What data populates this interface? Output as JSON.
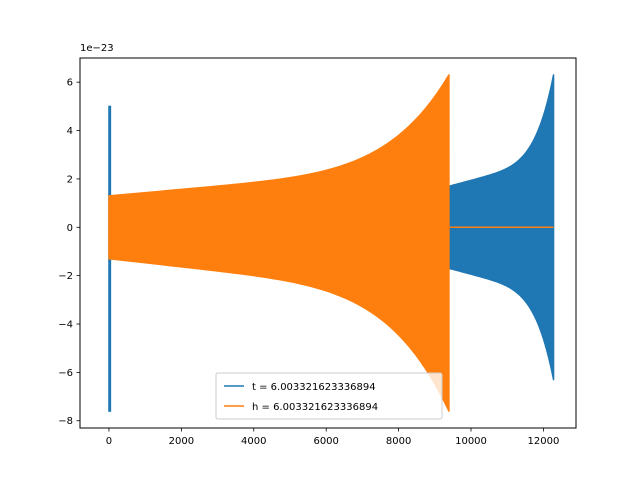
{
  "chart_data": {
    "type": "line",
    "title": "",
    "xlabel": "",
    "ylabel": "",
    "y_offset_label": "1e−23",
    "xlim": [
      -800,
      12900
    ],
    "ylim": [
      -8.3,
      7.0
    ],
    "xticks": [
      0,
      2000,
      4000,
      6000,
      8000,
      10000,
      12000
    ],
    "yticks": [
      -8,
      -6,
      -4,
      -2,
      0,
      2,
      4,
      6
    ],
    "grid": false,
    "legend_placement": "lower center",
    "series": [
      {
        "name": "t = 6.003321623336894",
        "color": "#1f77b4",
        "segments": [
          {
            "x_start": 0,
            "x_end": 40,
            "upper": [
              5.0,
              5.0
            ],
            "lower": [
              -7.6,
              -7.6
            ]
          },
          {
            "x_start": 40,
            "x_end": 9400,
            "upper": [
              1.3,
              1.7
            ],
            "lower": [
              -1.3,
              -1.7
            ]
          },
          {
            "x_start": 9400,
            "x_end": 12280,
            "upper": [
              1.7,
              6.3
            ],
            "lower": [
              -1.7,
              -6.3
            ]
          }
        ]
      },
      {
        "name": "h = 6.003321623336894",
        "color": "#ff7f0e",
        "segments": [
          {
            "x_start": 0,
            "x_end": 9390,
            "upper": [
              1.3,
              6.3
            ],
            "lower": [
              -1.3,
              -7.6
            ]
          },
          {
            "x_start": 9390,
            "x_end": 12280,
            "upper": [
              0.0,
              0.0
            ],
            "lower": [
              0.0,
              0.0
            ]
          }
        ]
      }
    ]
  }
}
